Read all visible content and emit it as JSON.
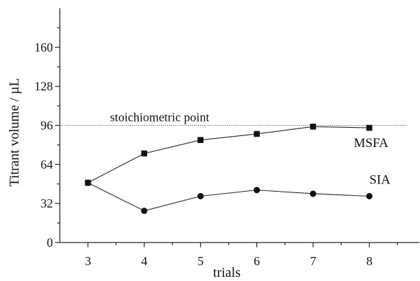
{
  "chart_data": {
    "type": "line",
    "xlabel": "trials",
    "ylabel": "Titrant volume / µL",
    "x": [
      3,
      4,
      5,
      6,
      7,
      8
    ],
    "xlim": [
      2.5,
      8.9
    ],
    "ylim": [
      0,
      192
    ],
    "x_ticks": [
      3,
      4,
      5,
      6,
      7,
      8
    ],
    "y_ticks": [
      0,
      32,
      64,
      96,
      128,
      160
    ],
    "grid": false,
    "series": [
      {
        "name": "MSFA",
        "marker": "square",
        "values": [
          49,
          73,
          84,
          89,
          95,
          94
        ]
      },
      {
        "name": "SIA",
        "marker": "circle",
        "values": [
          49,
          26,
          38,
          43,
          40,
          38
        ]
      }
    ],
    "reference_line": {
      "y": 96,
      "label": "stoichiometric point",
      "style": "dashed"
    }
  }
}
